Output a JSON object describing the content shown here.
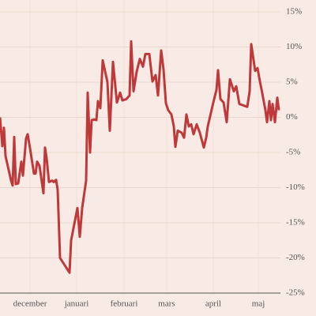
{
  "chart_data": {
    "type": "line",
    "x": [
      0,
      1.5,
      2.5,
      3.5,
      7,
      8,
      9,
      10,
      11.5,
      13.5,
      14.5,
      16.5,
      17.5,
      19,
      21.5,
      22.5,
      23.5,
      25,
      27.5,
      28.5,
      29.5,
      31,
      33,
      34,
      35.5,
      36.5,
      38,
      44,
      45,
      49,
      50.5,
      52,
      54.5,
      55.5,
      57,
      58,
      59.5,
      61,
      62,
      63.5,
      65,
      68,
      69.5,
      71.5,
      74,
      76,
      77.5,
      80,
      82,
      83,
      84.5,
      86.5,
      88.5,
      90.5,
      92,
      94.5,
      96.5,
      98.5,
      100,
      102,
      103.5,
      105,
      106.5,
      108.5,
      110,
      111,
      112.5,
      115,
      116.5,
      118,
      119.5,
      121,
      122.5,
      124.5,
      126.5,
      129,
      130.5,
      131.5,
      135,
      137,
      138,
      139.5,
      141.5,
      143.5,
      145.5,
      148,
      149.5,
      151.5,
      156.5,
      158,
      159,
      161.5,
      163,
      164,
      166,
      168,
      169,
      170.5,
      171.5,
      172.5,
      174,
      175.5,
      176.5
    ],
    "values": [
      0,
      -4.1,
      -1.5,
      -5.5,
      -9,
      -9.7,
      -2.8,
      -9.5,
      -9.4,
      -6.3,
      -8.3,
      -3,
      -2.4,
      -4.4,
      -8,
      -8,
      -6.3,
      -6.9,
      -10.8,
      -4.3,
      -5.8,
      -9.2,
      -9,
      -9.2,
      -8.9,
      -10.3,
      -20,
      -22.1,
      -17.5,
      -12.9,
      -17,
      -12.9,
      -9,
      3.5,
      -5,
      -0.4,
      -0.3,
      -0.4,
      2.3,
      1.3,
      8.1,
      5,
      -1.9,
      7.9,
      2.1,
      3.5,
      2.4,
      2.6,
      3.1,
      10.8,
      3.7,
      6.5,
      8.3,
      7.2,
      9,
      9,
      5.1,
      6,
      3.1,
      9.5,
      6.8,
      2,
      1,
      0.4,
      -1.3,
      -4.2,
      -1.9,
      -2.2,
      -2.9,
      0.4,
      -1.3,
      -1,
      -2.4,
      -1,
      -2.2,
      -4.3,
      -2.9,
      -1.3,
      2.1,
      3.9,
      6.7,
      2.6,
      2.1,
      -0.7,
      5.4,
      3.7,
      4.4,
      1.9,
      1.5,
      3.7,
      10.4,
      6.6,
      7,
      5.7,
      3.4,
      1,
      -0.7,
      2.3,
      -0.4,
      1.9,
      -0.7,
      2.8,
      1
    ],
    "color": "#c0393a",
    "xlim": [
      0,
      177.5
    ],
    "xticks": [
      {
        "value": 19,
        "label": "december"
      },
      {
        "value": 48.5,
        "label": "januari"
      },
      {
        "value": 78.5,
        "label": "februari"
      },
      {
        "value": 105.5,
        "label": "mars"
      },
      {
        "value": 135,
        "label": "april"
      },
      {
        "value": 163.5,
        "label": "maj"
      }
    ],
    "ylim": [
      -25,
      15
    ],
    "yticks": [
      {
        "value": 15,
        "label": "15%"
      },
      {
        "value": 10,
        "label": "10%"
      },
      {
        "value": 5,
        "label": "5%"
      },
      {
        "value": 0,
        "label": "0%"
      },
      {
        "value": -5,
        "label": "-5%"
      },
      {
        "value": -10,
        "label": "-10%"
      },
      {
        "value": -15,
        "label": "-15%"
      },
      {
        "value": -20,
        "label": "-20%"
      },
      {
        "value": -25,
        "label": "-25%"
      }
    ],
    "grid": true
  }
}
